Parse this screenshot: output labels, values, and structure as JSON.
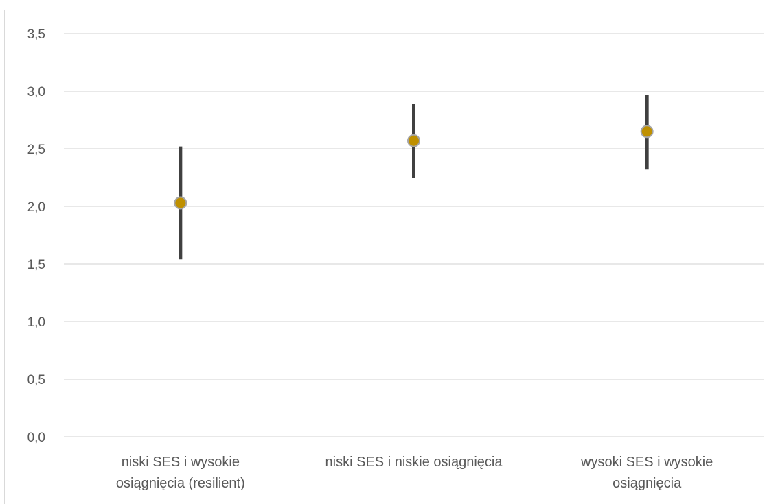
{
  "chart_data": {
    "type": "scatter",
    "title": "",
    "xlabel": "",
    "ylabel": "",
    "ylim": [
      0,
      3.5
    ],
    "y_ticks": [
      "0,0",
      "0,5",
      "1,0",
      "1,5",
      "2,0",
      "2,5",
      "3,0",
      "3,5"
    ],
    "y_tick_values": [
      0,
      0.5,
      1.0,
      1.5,
      2.0,
      2.5,
      3.0,
      3.5
    ],
    "grid": true,
    "legend": "none",
    "categories": [
      [
        "niski SES i wysokie",
        "osiągnięcia (resilient)"
      ],
      [
        "niski SES i niskie osiągnięcia"
      ],
      [
        "wysoki SES i wysokie",
        "osiągnięcia"
      ]
    ],
    "points": [
      {
        "mean": 2.03,
        "lower": 1.54,
        "upper": 2.52
      },
      {
        "mean": 2.57,
        "lower": 2.25,
        "upper": 2.89
      },
      {
        "mean": 2.65,
        "lower": 2.32,
        "upper": 2.97
      }
    ],
    "colors": {
      "marker_fill": "#bf9000",
      "marker_stroke": "#a5a5a5",
      "error_bar": "#404040",
      "gridline": "#d9d9d9",
      "axis_text": "#595959"
    }
  }
}
